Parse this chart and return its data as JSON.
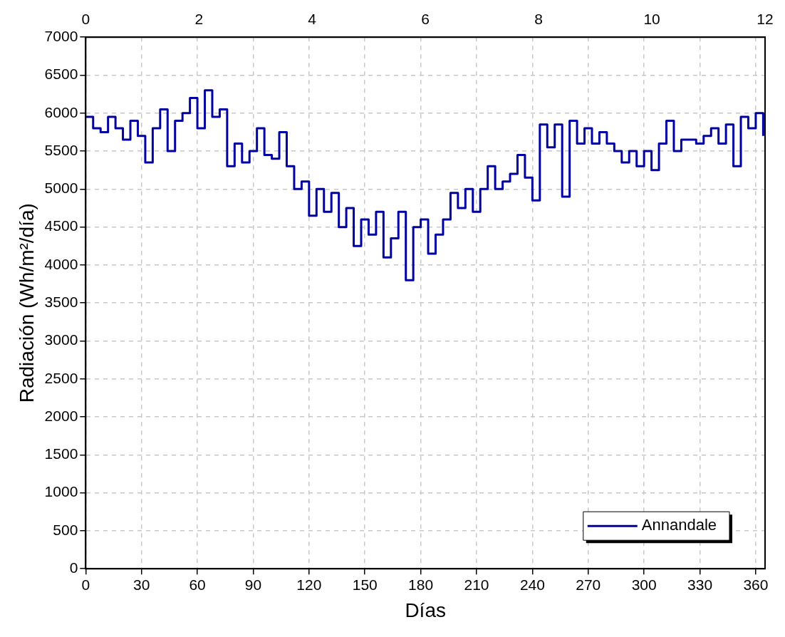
{
  "chart_data": {
    "type": "step",
    "xlabel": "Días",
    "ylabel": "Radiación (Wh/m²/día)",
    "xlim": [
      0,
      365
    ],
    "xticks": [
      0,
      30,
      60,
      90,
      120,
      150,
      180,
      210,
      240,
      270,
      300,
      330,
      360
    ],
    "x2lim": [
      0,
      12
    ],
    "x2ticks": [
      0,
      2,
      4,
      6,
      8,
      10,
      12
    ],
    "ylim": [
      0,
      7000
    ],
    "yticks": [
      0,
      500,
      1000,
      1500,
      2000,
      2500,
      3000,
      3500,
      4000,
      4500,
      5000,
      5500,
      6000,
      6500,
      7000
    ],
    "grid": true,
    "legend": "bottom right",
    "x": [
      0,
      4,
      8,
      12,
      16,
      20,
      24,
      28,
      32,
      36,
      40,
      44,
      48,
      52,
      56,
      60,
      64,
      68,
      72,
      76,
      80,
      84,
      88,
      92,
      96,
      100,
      104,
      108,
      112,
      116,
      120,
      124,
      128,
      132,
      136,
      140,
      144,
      148,
      152,
      156,
      160,
      164,
      168,
      172,
      176,
      180,
      184,
      188,
      192,
      196,
      200,
      204,
      208,
      212,
      216,
      220,
      224,
      228,
      232,
      236,
      240,
      244,
      248,
      252,
      256,
      260,
      264,
      268,
      272,
      276,
      280,
      284,
      288,
      292,
      296,
      300,
      304,
      308,
      312,
      316,
      320,
      324,
      328,
      332,
      336,
      340,
      344,
      348,
      352,
      356,
      360,
      364
    ],
    "series": [
      {
        "name": "Annandale",
        "color": "#0000a0",
        "values": [
          5950,
          5800,
          5750,
          5950,
          5800,
          5650,
          5900,
          5700,
          5350,
          5800,
          6050,
          5500,
          5900,
          6000,
          6200,
          5800,
          6300,
          5950,
          6050,
          5300,
          5600,
          5350,
          5500,
          5800,
          5450,
          5400,
          5750,
          5300,
          5000,
          5100,
          4650,
          5000,
          4700,
          4950,
          4500,
          4750,
          4250,
          4600,
          4400,
          4700,
          4100,
          4350,
          4700,
          3800,
          4500,
          4600,
          4150,
          4400,
          4600,
          4950,
          4750,
          5000,
          4700,
          5000,
          5300,
          5000,
          5100,
          5200,
          5450,
          5150,
          4850,
          5850,
          5550,
          5850,
          4900,
          5900,
          5600,
          5800,
          5600,
          5750,
          5600,
          5500,
          5350,
          5500,
          5300,
          5500,
          5250,
          5600,
          5900,
          5500,
          5650,
          5650,
          5600,
          5700,
          5800,
          5600,
          5850,
          5300,
          5950,
          5800,
          6000,
          5700
        ]
      }
    ]
  }
}
